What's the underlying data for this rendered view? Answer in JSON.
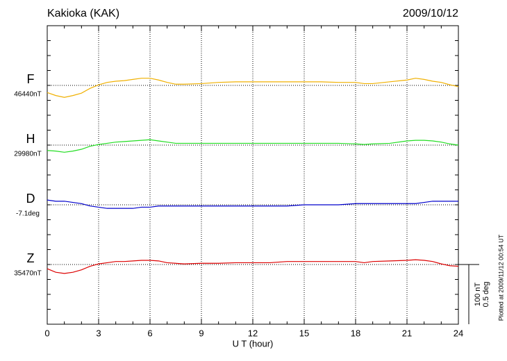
{
  "chart_data": {
    "type": "line",
    "title": "Kakioka (KAK)",
    "date": "2009/10/12",
    "x_label": "U T (hour)",
    "footnote": "Plotted at 2009/11/12 00:54 UT",
    "xlim": [
      0,
      24
    ],
    "xticks": [
      0,
      3,
      6,
      9,
      12,
      15,
      18,
      21,
      24
    ],
    "grid": true,
    "x": [
      0,
      0.5,
      1,
      1.5,
      2,
      2.5,
      3,
      3.5,
      4,
      4.5,
      5,
      5.5,
      6,
      6.5,
      7,
      7.5,
      8,
      9,
      10,
      11,
      12,
      13,
      14,
      15,
      16,
      17,
      18,
      18.5,
      19,
      20,
      21,
      21.5,
      22,
      22.5,
      23,
      23.5,
      24
    ],
    "scale": [
      {
        "value": 100,
        "label": "100 nT"
      },
      {
        "value": 0.5,
        "label": "0.5 deg"
      }
    ],
    "series": [
      {
        "name": "F",
        "color": "#f0b000",
        "baseline": {
          "value": 46440,
          "label": "46440nT"
        },
        "ylim": [
          46040,
          46540
        ],
        "values": [
          46428,
          46423,
          46420,
          46423,
          46427,
          46435,
          46441,
          46445,
          46447,
          46448,
          46450,
          46452,
          46452,
          46449,
          46445,
          46442,
          46442,
          46443,
          46445,
          46446,
          46446,
          46446,
          46446,
          46446,
          46446,
          46445,
          46445,
          46443,
          46443,
          46446,
          46449,
          46452,
          46450,
          46447,
          46445,
          46441,
          46438
        ]
      },
      {
        "name": "H",
        "color": "#22dd22",
        "baseline": {
          "value": 29980,
          "label": "29980nT"
        },
        "ylim": [
          29680,
          30180
        ],
        "values": [
          29971,
          29970,
          29968,
          29970,
          29973,
          29978,
          29981,
          29983,
          29985,
          29986,
          29987,
          29988,
          29989,
          29987,
          29985,
          29983,
          29983,
          29983,
          29983,
          29983,
          29983,
          29983,
          29983,
          29983,
          29983,
          29983,
          29982,
          29981,
          29982,
          29983,
          29987,
          29988,
          29988,
          29987,
          29985,
          29982,
          29980
        ]
      },
      {
        "name": "D",
        "color": "#0000cc",
        "baseline": {
          "value": -7.1,
          "label": "-7.1deg"
        },
        "ylim": [
          -8.1,
          -5.6
        ],
        "values": [
          -7.06,
          -7.07,
          -7.07,
          -7.08,
          -7.09,
          -7.11,
          -7.12,
          -7.13,
          -7.13,
          -7.13,
          -7.13,
          -7.12,
          -7.12,
          -7.11,
          -7.11,
          -7.11,
          -7.11,
          -7.11,
          -7.11,
          -7.11,
          -7.11,
          -7.11,
          -7.11,
          -7.1,
          -7.1,
          -7.1,
          -7.09,
          -7.09,
          -7.09,
          -7.09,
          -7.09,
          -7.09,
          -7.08,
          -7.07,
          -7.07,
          -7.07,
          -7.07
        ]
      },
      {
        "name": "Z",
        "color": "#dd0000",
        "baseline": {
          "value": 35470,
          "label": "35470nT"
        },
        "ylim": [
          35370,
          35870
        ],
        "values": [
          35463,
          35457,
          35455,
          35457,
          35461,
          35467,
          35471,
          35473,
          35475,
          35475,
          35476,
          35477,
          35477,
          35476,
          35473,
          35472,
          35471,
          35472,
          35472,
          35473,
          35473,
          35473,
          35475,
          35475,
          35475,
          35475,
          35475,
          35473,
          35475,
          35476,
          35477,
          35478,
          35477,
          35475,
          35471,
          35468,
          35467
        ]
      }
    ]
  }
}
